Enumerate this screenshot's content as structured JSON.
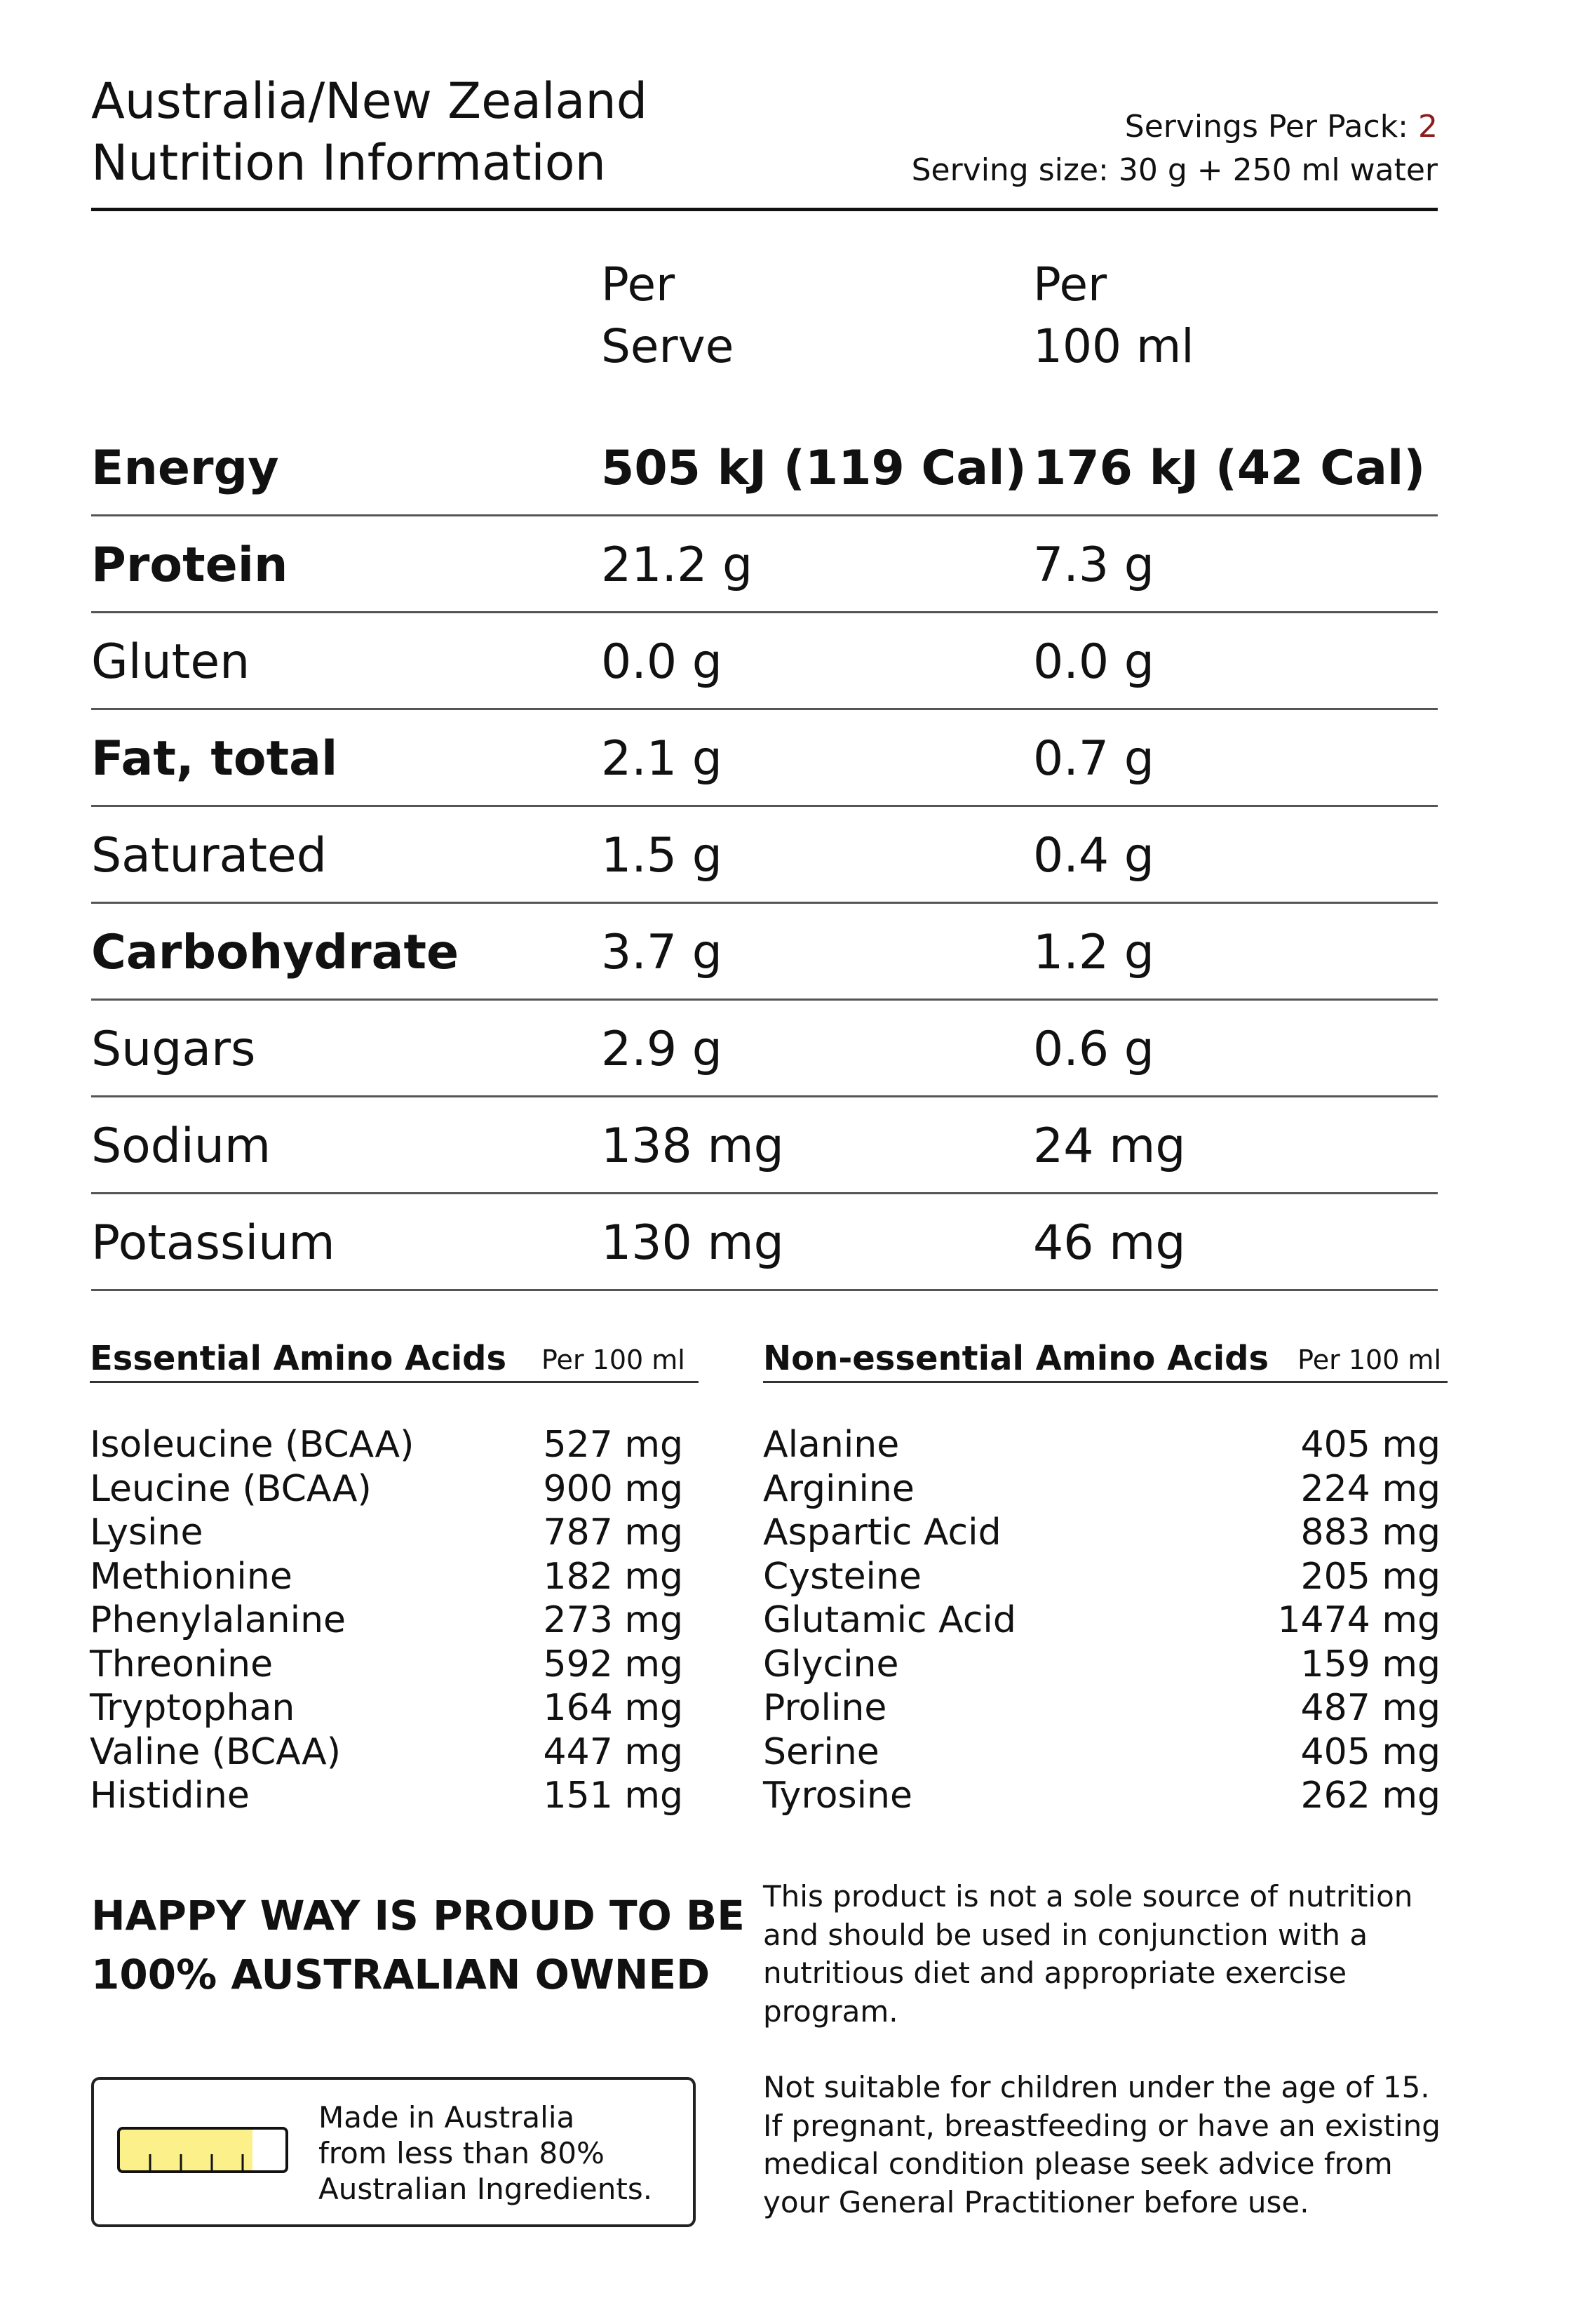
{
  "header": {
    "title_line1": "Australia/New Zealand",
    "title_line2": "Nutrition Information",
    "servings_label": "Servings Per Pack: ",
    "servings_value": "2",
    "serving_size": "Serving size: 30 g + 250 ml water"
  },
  "columns": {
    "per_serve_line1": "Per",
    "per_serve_line2": "Serve",
    "per_100_line1": "Per",
    "per_100_line2": "100 ml"
  },
  "nutrients": [
    {
      "name": "Energy",
      "per_serve": "505 kJ (119 Cal)",
      "per_100": "176 kJ (42 Cal)"
    },
    {
      "name": "Protein",
      "per_serve": "21.2 g",
      "per_100": "7.3 g"
    },
    {
      "name": "Gluten",
      "per_serve": "0.0 g",
      "per_100": "0.0 g"
    },
    {
      "name": "Fat, total",
      "per_serve": "2.1 g",
      "per_100": "0.7 g"
    },
    {
      "name": "Saturated",
      "per_serve": "1.5 g",
      "per_100": "0.4 g"
    },
    {
      "name": "Carbohydrate",
      "per_serve": "3.7 g",
      "per_100": "1.2 g"
    },
    {
      "name": "Sugars",
      "per_serve": "2.9 g",
      "per_100": "0.6 g"
    },
    {
      "name": "Sodium",
      "per_serve": "138 mg",
      "per_100": "24 mg"
    },
    {
      "name": "Potassium",
      "per_serve": "130 mg",
      "per_100": "46 mg"
    }
  ],
  "essential": {
    "heading": "Essential Amino Acids",
    "per": "Per 100 ml",
    "items": [
      {
        "name": "Isoleucine (BCAA)",
        "value": "527 mg"
      },
      {
        "name": "Leucine (BCAA)",
        "value": "900 mg"
      },
      {
        "name": "Lysine",
        "value": "787 mg"
      },
      {
        "name": "Methionine",
        "value": "182 mg"
      },
      {
        "name": "Phenylalanine",
        "value": "273 mg"
      },
      {
        "name": "Threonine",
        "value": "592 mg"
      },
      {
        "name": "Tryptophan",
        "value": "164 mg"
      },
      {
        "name": "Valine (BCAA)",
        "value": "447 mg"
      },
      {
        "name": "Histidine",
        "value": "151 mg"
      }
    ]
  },
  "nonessential": {
    "heading": "Non-essential Amino Acids",
    "per": "Per 100 ml",
    "items": [
      {
        "name": "Alanine",
        "value": "405 mg"
      },
      {
        "name": "Arginine",
        "value": "224 mg"
      },
      {
        "name": "Aspartic Acid",
        "value": "883 mg"
      },
      {
        "name": "Cysteine",
        "value": "205 mg"
      },
      {
        "name": "Glutamic Acid",
        "value": "1474 mg"
      },
      {
        "name": "Glycine",
        "value": "159 mg"
      },
      {
        "name": "Proline",
        "value": "487 mg"
      },
      {
        "name": "Serine",
        "value": "405 mg"
      },
      {
        "name": "Tyrosine",
        "value": "262 mg"
      }
    ]
  },
  "proud": {
    "line1": "HAPPY WAY IS PROUD TO BE",
    "line2": "100% AUSTRALIAN OWNED"
  },
  "made_in": {
    "line1": "Made in Australia",
    "line2": "from less than 80%",
    "line3": "Australian Ingredients.",
    "australian_ingredients_fraction": 0.8,
    "gauge_fill_color": "#fbf08a"
  },
  "disclaimer": {
    "p1_line1": "This product is not a sole source of nutrition",
    "p1_line2": "and should be used in conjunction with a",
    "p1_line3": "nutritious diet and appropriate exercise",
    "p1_line4": "program.",
    "p2_line1": "Not suitable for children under the age of 15.",
    "p2_line2": "If pregnant, breastfeeding or have an existing",
    "p2_line3": "medical condition please seek advice from",
    "p2_line4": "your General Practitioner before use."
  }
}
